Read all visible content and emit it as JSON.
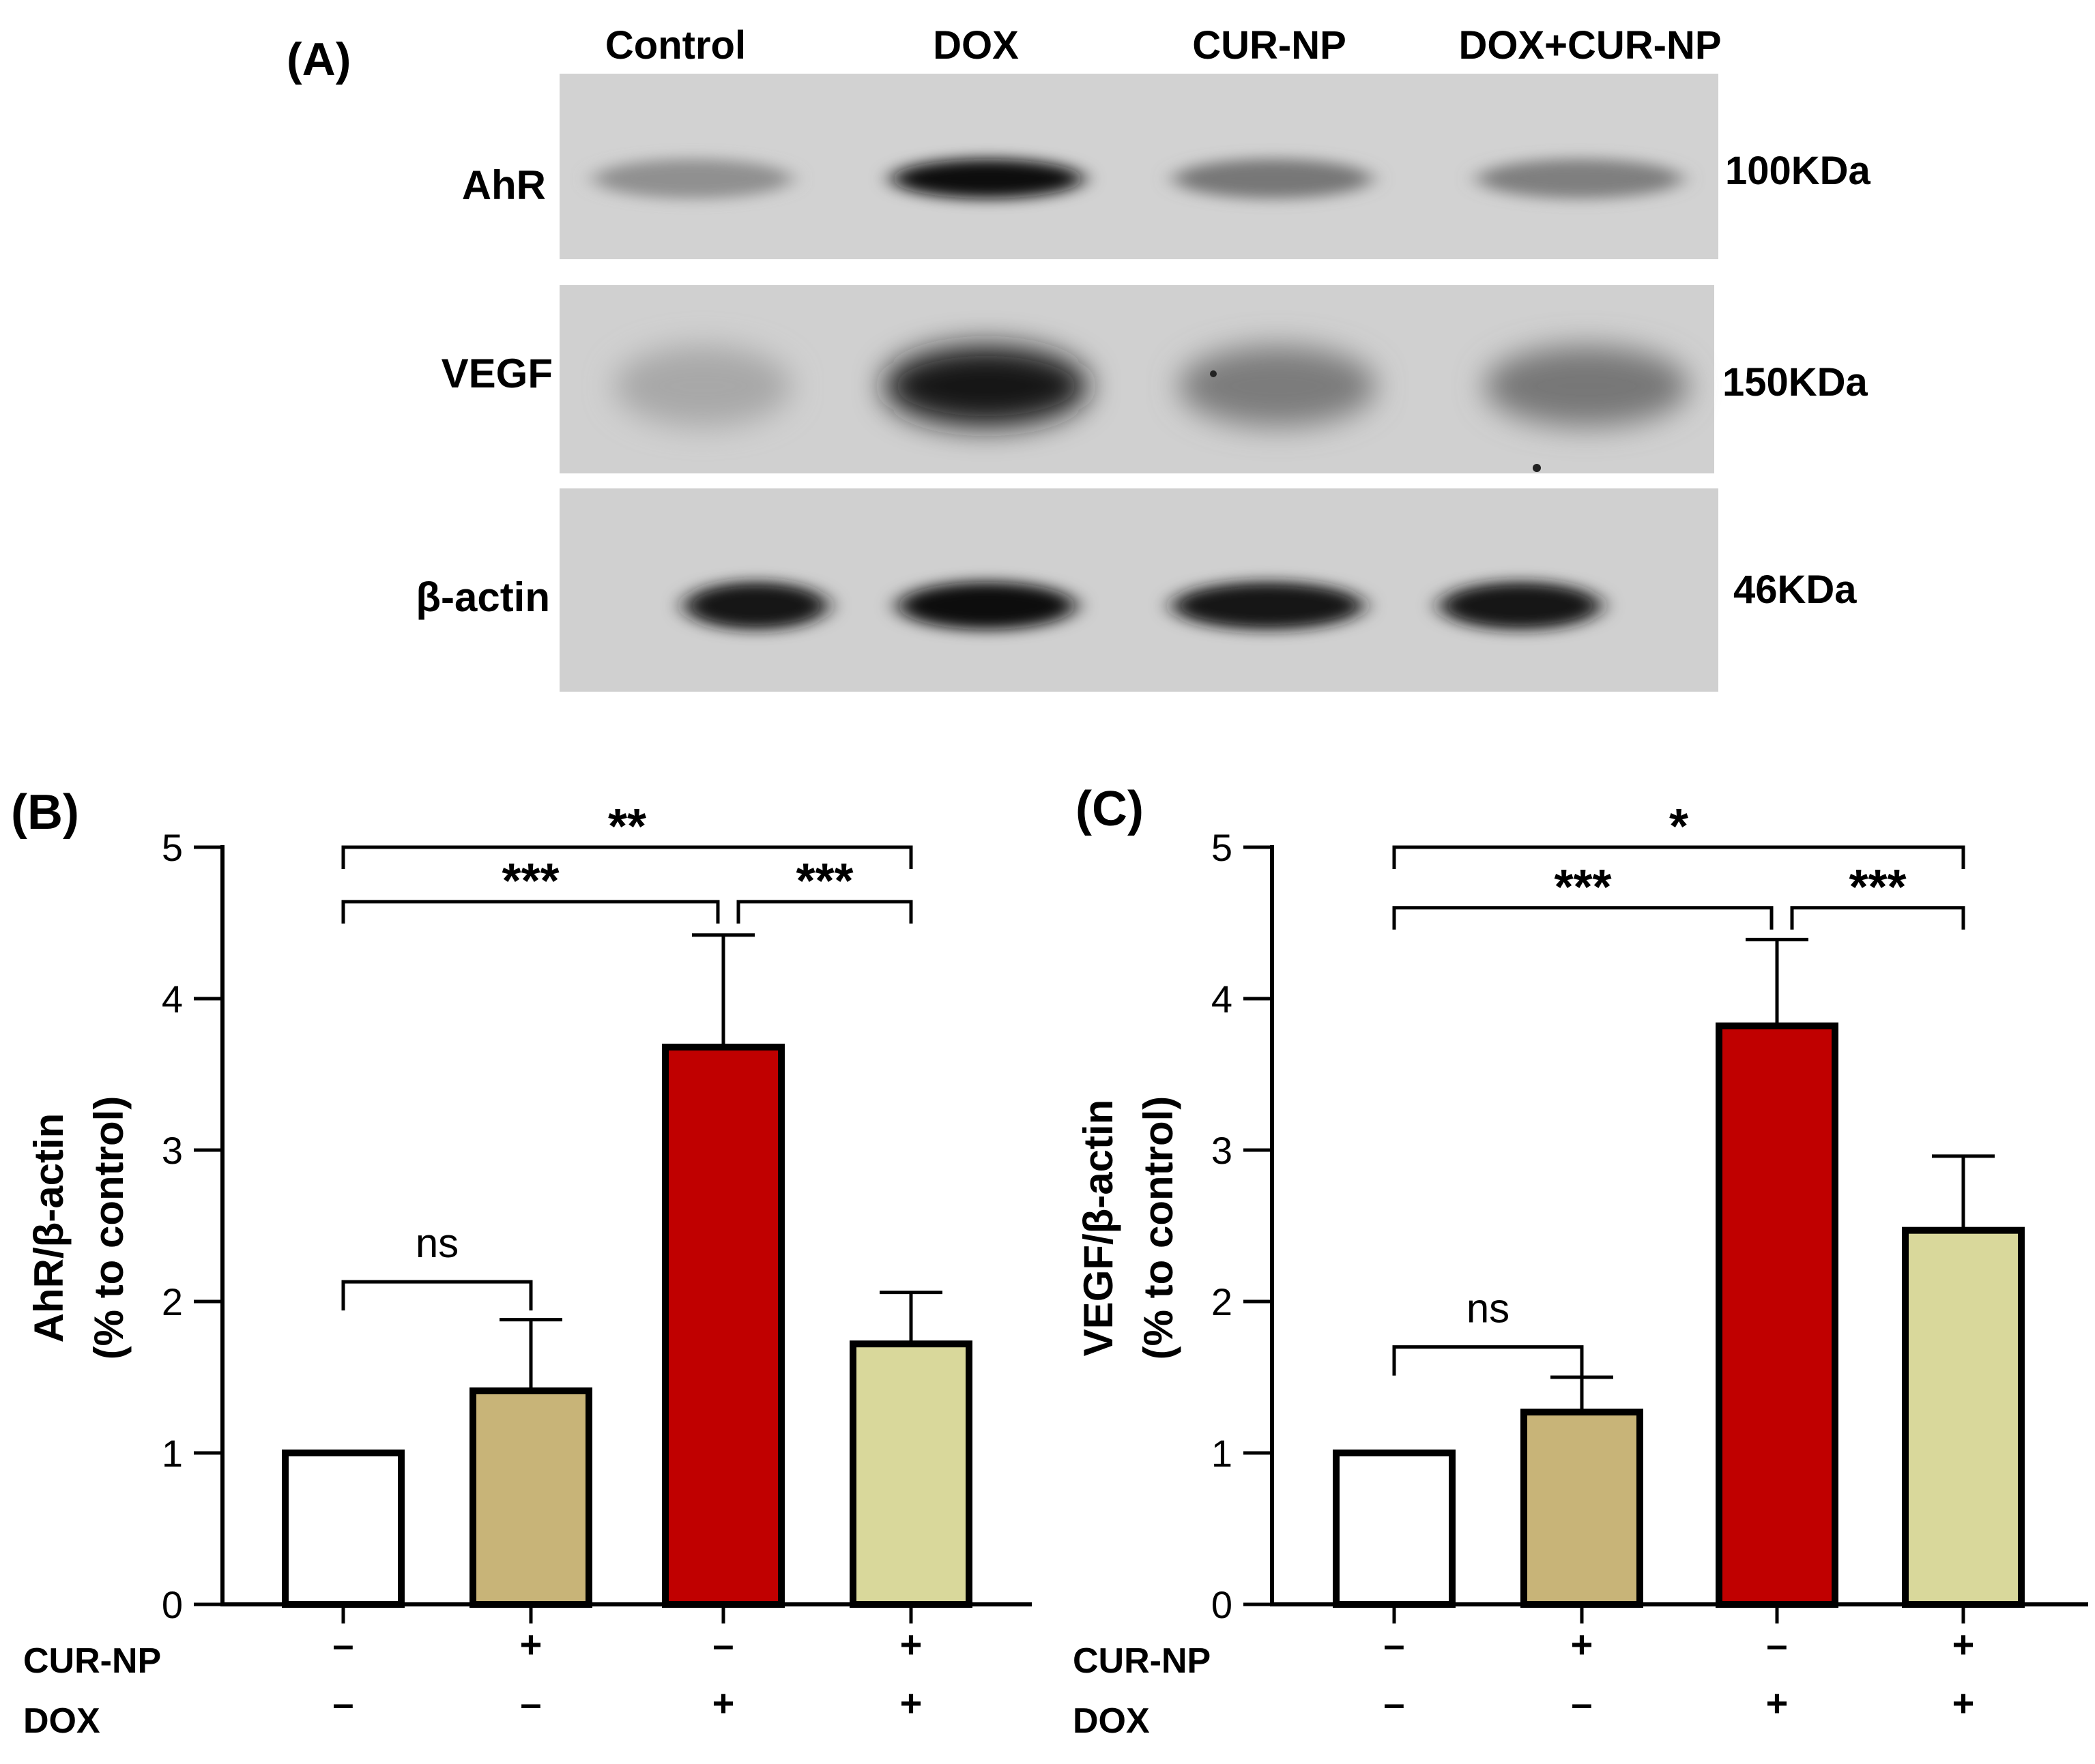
{
  "panelA": {
    "label": "(A)",
    "lanes": [
      "Control",
      "DOX",
      "CUR-NP",
      "DOX+CUR-NP"
    ],
    "blots": [
      {
        "protein": "AhR",
        "size": "100KDa",
        "intensities": [
          0.3,
          0.92,
          0.42,
          0.38
        ]
      },
      {
        "protein": "VEGF",
        "size": "150KDa",
        "intensities": [
          0.18,
          0.88,
          0.4,
          0.42
        ]
      },
      {
        "protein": "β-actin",
        "size": "46KDa",
        "intensities": [
          0.88,
          0.92,
          0.9,
          0.9
        ]
      }
    ]
  },
  "chart_data": [
    {
      "panel": "(B)",
      "type": "bar",
      "ylabel_line1": "AhR/β-actin",
      "ylabel_line2": "(% to control)",
      "ylim": [
        0,
        5
      ],
      "yticks": [
        "0",
        "1",
        "2",
        "3",
        "4",
        "5"
      ],
      "values": [
        1.0,
        1.41,
        3.68,
        1.72
      ],
      "errors": [
        0.0,
        0.47,
        0.74,
        0.34
      ],
      "colors": [
        "#ffffff",
        "#c8b478",
        "#c00000",
        "#d9d89b"
      ],
      "row_labels": [
        "CUR-NP",
        "DOX"
      ],
      "cur_np": [
        "–",
        "+",
        "–",
        "+"
      ],
      "dox": [
        "–",
        "–",
        "+",
        "+"
      ],
      "significance": [
        {
          "from": 0,
          "to": 3,
          "label": "**",
          "y": 5.0
        },
        {
          "from": 0,
          "to": 2,
          "label": "***",
          "y": 4.64
        },
        {
          "from": 2,
          "to": 3,
          "label": "***",
          "y": 4.64
        },
        {
          "from": 0,
          "to": 1,
          "label": "ns",
          "y": 2.13
        }
      ]
    },
    {
      "panel": "(C)",
      "type": "bar",
      "ylabel_line1": "VEGF/β-actin",
      "ylabel_line2": "(% to control)",
      "ylim": [
        0,
        5
      ],
      "yticks": [
        "0",
        "1",
        "2",
        "3",
        "4",
        "5"
      ],
      "values": [
        1.0,
        1.27,
        3.82,
        2.47
      ],
      "errors": [
        0.0,
        0.23,
        0.57,
        0.49
      ],
      "colors": [
        "#ffffff",
        "#c8b478",
        "#c00000",
        "#d9d89b"
      ],
      "row_labels": [
        "CUR-NP",
        "DOX"
      ],
      "cur_np": [
        "–",
        "+",
        "–",
        "+"
      ],
      "dox": [
        "–",
        "–",
        "+",
        "+"
      ],
      "significance": [
        {
          "from": 0,
          "to": 3,
          "label": "*",
          "y": 5.0
        },
        {
          "from": 0,
          "to": 2,
          "label": "***",
          "y": 4.6
        },
        {
          "from": 2,
          "to": 3,
          "label": "***",
          "y": 4.6
        },
        {
          "from": 0,
          "to": 1,
          "label": "ns",
          "y": 1.7
        }
      ]
    }
  ]
}
